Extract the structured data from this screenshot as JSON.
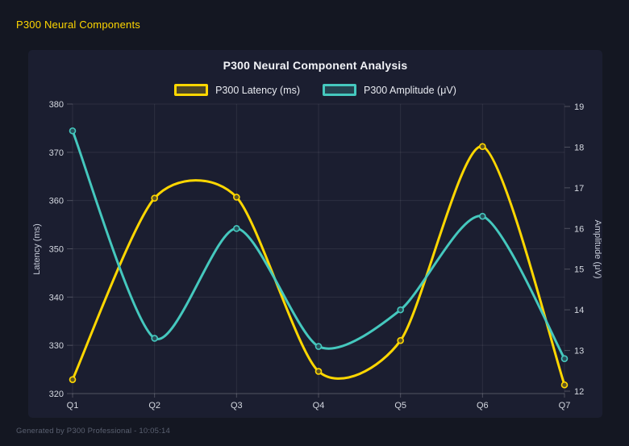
{
  "header": {
    "title": "P300 Neural Components"
  },
  "footer": {
    "text": "Generated by P300 Professional - 10:05:14"
  },
  "colors": {
    "page_bg": "#141722",
    "card_bg": "#1b1e30",
    "latency_yellow": "#FFD700",
    "amplitude_teal": "#45C8BE",
    "grid": "rgba(255,255,255,0.08)",
    "tick_mark": "rgba(255,255,255,0.22)",
    "axis_line": "rgba(255,255,255,0.18)",
    "tick_text": "#d4d8e0"
  },
  "chart_data": {
    "type": "line",
    "title": "P300 Neural Component Analysis",
    "categories": [
      "Q1",
      "Q2",
      "Q3",
      "Q4",
      "Q5",
      "Q6",
      "Q7"
    ],
    "series": [
      {
        "name": "P300 Latency (ms)",
        "color": "#FFD700",
        "axis": "left",
        "values": [
          322.9,
          360.5,
          360.7,
          324.6,
          331.0,
          371.2,
          321.8
        ]
      },
      {
        "name": "P300 Amplitude (μV)",
        "color": "#45C8BE",
        "axis": "right",
        "values": [
          18.4,
          13.3,
          16.0,
          13.1,
          14.0,
          16.3,
          12.8
        ]
      }
    ],
    "axes": {
      "left": {
        "label": "Latency (ms)",
        "min": 320,
        "max": 380,
        "step": 10
      },
      "right": {
        "label": "Amplitude (μV)",
        "min": 12,
        "max": 19,
        "step": 1
      }
    },
    "legend_position": "top",
    "grid": true,
    "smooth": true
  }
}
